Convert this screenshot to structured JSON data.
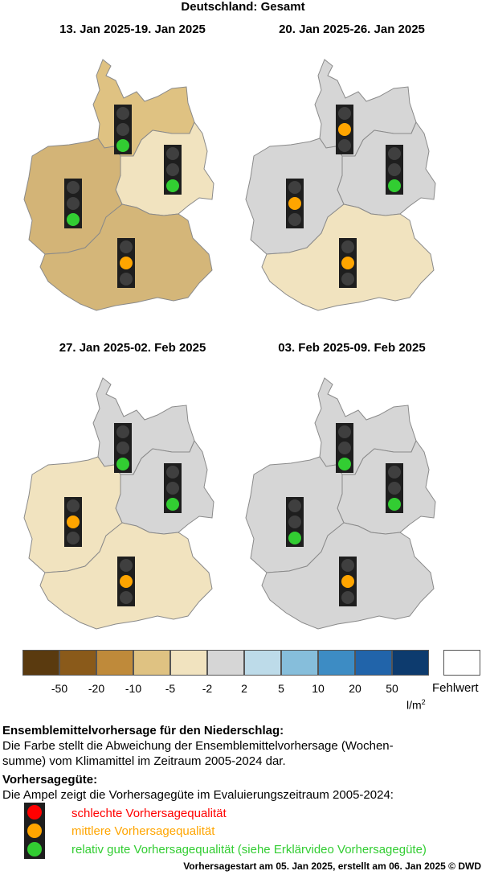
{
  "title": "Deutschland: Gesamt",
  "panels": [
    {
      "period": "13. Jan 2025-19. Jan 2025",
      "regions": {
        "north": "#dfc282",
        "east": "#f1e3bf",
        "west": "#d3b477",
        "south": "#d4b679"
      },
      "lights": {
        "north": "green",
        "east": "green",
        "west": "green",
        "south": "orange"
      }
    },
    {
      "period": "20. Jan 2025-26. Jan 2025",
      "regions": {
        "north": "#d6d6d6",
        "east": "#d6d6d6",
        "west": "#d6d6d6",
        "south": "#f1e3bf"
      },
      "lights": {
        "north": "orange",
        "east": "green",
        "west": "orange",
        "south": "orange"
      }
    },
    {
      "period": "27. Jan 2025-02. Feb 2025",
      "regions": {
        "north": "#d6d6d6",
        "east": "#d6d6d6",
        "west": "#f1e3bf",
        "south": "#f1e3bf"
      },
      "lights": {
        "north": "green",
        "east": "green",
        "west": "orange",
        "south": "orange"
      }
    },
    {
      "period": "03. Feb 2025-09. Feb 2025",
      "regions": {
        "north": "#d6d6d6",
        "east": "#d6d6d6",
        "west": "#d6d6d6",
        "south": "#d6d6d6"
      },
      "lights": {
        "north": "green",
        "east": "green",
        "west": "green",
        "south": "orange"
      }
    }
  ],
  "legend": {
    "colors": [
      "#5a3a0f",
      "#8a5a1a",
      "#bf8a3a",
      "#dfc282",
      "#f1e3bf",
      "#d6d6d6",
      "#bddbe9",
      "#86bedb",
      "#3d8cc4",
      "#2164aa",
      "#0d3b6e"
    ],
    "ticks": [
      "-50",
      "-20",
      "-10",
      "-5",
      "-2",
      "2",
      "5",
      "10",
      "20",
      "50"
    ],
    "missing_label": "Fehlwert",
    "unit": "l/m",
    "unit_exp": "2"
  },
  "description": {
    "heading": "Ensemblemittelvorhersage für den Niederschlag:",
    "line1": "Die Farbe stellt die Abweichung der Ensemblemittelvorhersage (Wochen-",
    "line2": "summe) vom Klimamittel im Zeitraum 2005-2024 dar.",
    "quality_heading": "Vorhersagegüte:",
    "quality_text": "Die Ampel zeigt die Vorhersagegüte im Evaluierungszeitraum 2005-2024:",
    "q_bad": "schlechte Vorhersagequalität",
    "q_mid": "mittlere Vorhersagequalität",
    "q_good": "relativ gute Vorhersagequalität (siehe Erklärvideo Vorhersagegüte)"
  },
  "colors": {
    "red": "#ff0000",
    "orange": "#ffa500",
    "green": "#32cd32",
    "off": "#3f3f3f"
  },
  "footer": "Vorhersagestart am 05. Jan 2025, erstellt am 06. Jan 2025 © DWD"
}
